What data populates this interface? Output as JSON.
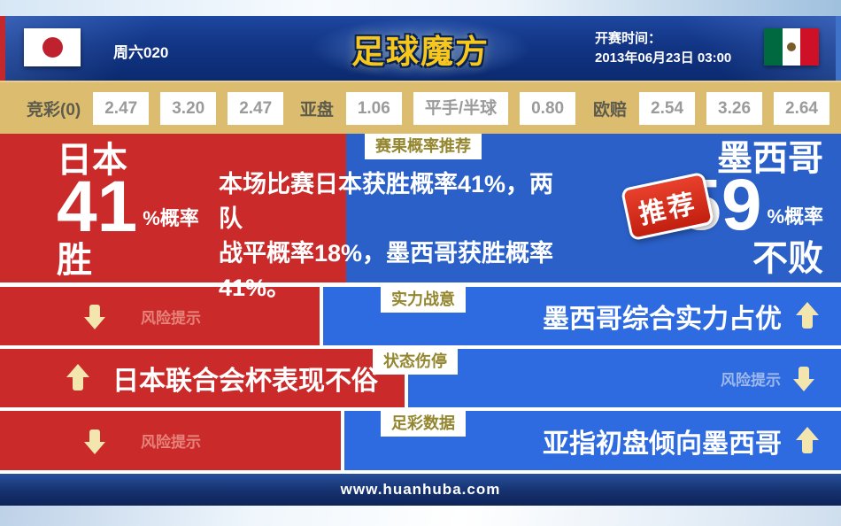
{
  "header": {
    "match_code": "周六020",
    "logo_text": "足球魔方",
    "kickoff_label": "开赛时间：",
    "kickoff_time": "2013年06月23日 03:00",
    "home_flag": "japan-flag",
    "away_flag": "mexico-flag"
  },
  "odds_bar": {
    "jingcai_label": "竞彩(0)",
    "jingcai_values": [
      "2.47",
      "3.20",
      "2.47"
    ],
    "yapan_label": "亚盘",
    "yapan_values": [
      "1.06",
      "平手/半球",
      "0.80"
    ],
    "oupei_label": "欧赔",
    "oupei_values": [
      "2.54",
      "3.26",
      "2.64"
    ]
  },
  "prediction": {
    "section_label": "赛果概率推荐",
    "stamp_label": "推荐",
    "home": {
      "team": "日本",
      "probability": "41",
      "probability_suffix": "%概率",
      "outcome": "胜"
    },
    "away": {
      "team": "墨西哥",
      "probability": "59",
      "probability_suffix": "%概率",
      "outcome": "不败"
    },
    "summary_lines": [
      "本场比赛日本获胜概率41%，两队",
      "战平概率18%，墨西哥获胜概率",
      "41%。"
    ]
  },
  "analysis_rows": [
    {
      "label": "实力战意",
      "left": {
        "text": "风险提示",
        "arrow": "down"
      },
      "right": {
        "text": "墨西哥综合实力占优",
        "arrow": "up"
      }
    },
    {
      "label": "状态伤停",
      "left": {
        "text": "日本联合会杯表现不俗",
        "arrow": "up"
      },
      "right": {
        "text": "风险提示",
        "arrow": "down"
      }
    },
    {
      "label": "足彩数据",
      "left": {
        "text": "风险提示",
        "arrow": "down"
      },
      "right": {
        "text": "亚指初盘倾向墨西哥",
        "arrow": "up"
      }
    }
  ],
  "footer": {
    "website": "www.huanhuba.com"
  },
  "colors": {
    "home_red": "#cb2a2a",
    "away_blue": "#2a60c8",
    "row_blue": "#2e6ae0",
    "odds_tan": "#dcbd70",
    "logo_gold": "#f8c71c",
    "arrow_cream": "#f3e5ae",
    "label_olive": "#94862e"
  }
}
